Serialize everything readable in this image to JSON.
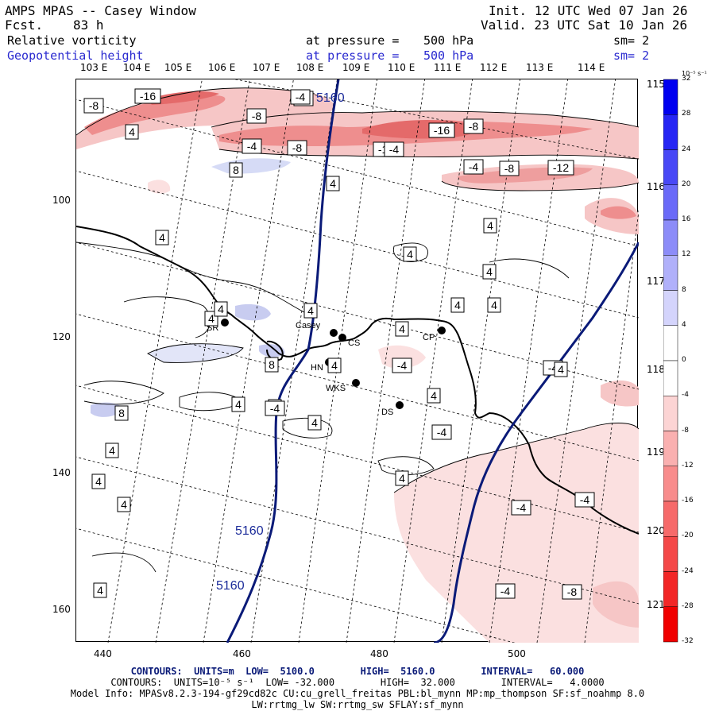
{
  "header": {
    "title": "AMPS MPAS -- Casey Window",
    "fcst_label": "Fcst.",
    "fcst_value": "83 h",
    "init": "Init. 12 UTC Wed 07 Jan 26",
    "valid": "Valid. 23 UTC Sat 10 Jan 26",
    "field1": "Relative vorticity",
    "field2": "Geopotential height",
    "pressure_label": "at pressure =",
    "pressure_value": "500 hPa",
    "sm1": "sm= 2",
    "sm2": "sm= 2"
  },
  "top_lon_labels": [
    "103 E",
    "104 E",
    "105 E",
    "106 E",
    "107 E",
    "108 E",
    "109 E",
    "110 E",
    "111 E",
    "112 E",
    "113 E",
    "114 E"
  ],
  "right_lon_labels": [
    "115 E",
    "116 E",
    "117 E",
    "118 E",
    "119 E",
    "120 E",
    "121 E"
  ],
  "x_ticks": [
    "440",
    "460",
    "480",
    "500"
  ],
  "y_ticks": [
    "100",
    "120",
    "140",
    "160"
  ],
  "colorbar": {
    "unit": "10⁻⁵ s⁻¹",
    "labels": [
      "32",
      "28",
      "24",
      "20",
      "16",
      "12",
      "8",
      "4",
      "0",
      "-4",
      "-8",
      "-12",
      "-16",
      "-20",
      "-24",
      "-28",
      "-32"
    ]
  },
  "stations": [
    {
      "id": "SR",
      "label": "SR"
    },
    {
      "id": "Casey",
      "label": "Casey"
    },
    {
      "id": "CS",
      "label": "CS"
    },
    {
      "id": "CP",
      "label": "CP"
    },
    {
      "id": "HN",
      "label": "HN"
    },
    {
      "id": "WKS",
      "label": "WKS"
    },
    {
      "id": "DS",
      "label": "DS"
    }
  ],
  "contour_labels": {
    "height": [
      "5160",
      "5160",
      "5160"
    ],
    "vorticity": [
      "-8",
      "-16",
      "-8",
      "-4",
      "-4",
      "-8",
      "-12",
      "-8",
      "-4",
      "-16",
      "-4",
      "-8",
      "-12",
      "4",
      "8",
      "4",
      "4",
      "-4",
      "4",
      "4",
      "4",
      "4",
      "4",
      "-4",
      "4",
      "8",
      "4",
      "4",
      "-4",
      "4",
      "4",
      "4",
      "-4",
      "4",
      "4",
      "8",
      "4",
      "4",
      "4",
      "4",
      "-4",
      "4",
      "4",
      "4",
      "-4",
      "-4",
      "-4",
      "4",
      "-8"
    ]
  },
  "footer": {
    "line1": "CONTOURS:  UNITS=m  LOW=  5100.0        HIGH=  5160.0        INTERVAL=   60.000",
    "line2": "CONTOURS:  UNITS=10⁻⁵ s⁻¹  LOW= -32.000        HIGH=  32.000        INTERVAL=   4.0000",
    "line3": "Model Info: MPASv8.2.3-194-gf29cd82c CU:cu_grell_freitas PBL:bl_mynn MP:mp_thompson SF:sf_noahmp 8.0",
    "line4": "LW:rrtmg_lw SW:rrtmg_sw SFLAY:sf_mynn"
  },
  "colors": {
    "height_contour": "#0a1a78",
    "neg_shade": "#f4b8b8",
    "pos_shade": "#c8ccf0",
    "coast": "#000000"
  }
}
